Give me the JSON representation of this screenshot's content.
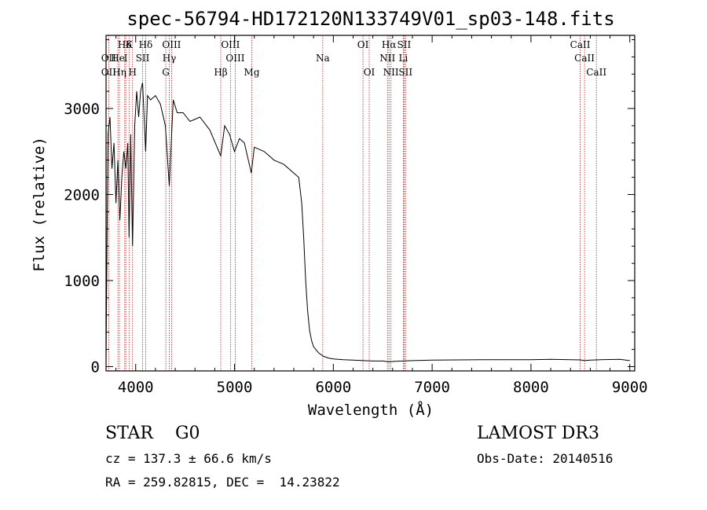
{
  "chart_data": {
    "type": "line",
    "title": "spec-56794-HD172120N133749V01_sp03-148.fits",
    "xlabel": "Wavelength (Å)",
    "ylabel": "Flux (relative)",
    "xlim": [
      3700,
      9050
    ],
    "ylim": [
      -50,
      3850
    ],
    "xticks": [
      4000,
      5000,
      6000,
      7000,
      8000,
      9000
    ],
    "yticks": [
      0,
      1000,
      2000,
      3000
    ],
    "series": [
      {
        "name": "flux",
        "x": [
          3700,
          3710,
          3720,
          3740,
          3760,
          3780,
          3800,
          3820,
          3840,
          3860,
          3880,
          3900,
          3920,
          3933,
          3950,
          3968,
          3990,
          4010,
          4030,
          4050,
          4070,
          4101,
          4120,
          4150,
          4200,
          4250,
          4300,
          4340,
          4380,
          4420,
          4480,
          4550,
          4650,
          4750,
          4861,
          4900,
          4950,
          5000,
          5050,
          5100,
          5170,
          5200,
          5300,
          5400,
          5500,
          5600,
          5650,
          5680,
          5700,
          5720,
          5740,
          5760,
          5780,
          5800,
          5850,
          5900,
          5950,
          6000,
          6100,
          6200,
          6300,
          6400,
          6500,
          6563,
          6600,
          6700,
          6800,
          7000,
          7500,
          8000,
          8200,
          8400,
          8500,
          8542,
          8600,
          8700,
          8900,
          9000
        ],
        "values": [
          80,
          1500,
          2700,
          2900,
          2300,
          2600,
          1900,
          2400,
          1700,
          2200,
          2500,
          2300,
          2600,
          1500,
          2700,
          1400,
          2800,
          3200,
          2900,
          3200,
          3300,
          2500,
          3150,
          3100,
          3150,
          3050,
          2800,
          2100,
          3100,
          2950,
          2950,
          2850,
          2900,
          2750,
          2450,
          2800,
          2700,
          2500,
          2650,
          2600,
          2250,
          2550,
          2500,
          2400,
          2350,
          2250,
          2200,
          1900,
          1500,
          1000,
          650,
          420,
          300,
          230,
          160,
          120,
          100,
          90,
          80,
          75,
          70,
          65,
          65,
          55,
          60,
          65,
          70,
          75,
          80,
          80,
          85,
          80,
          78,
          70,
          75,
          80,
          85,
          70
        ]
      }
    ],
    "line_markers": [
      {
        "label": "Hδ",
        "row": 0,
        "x": 3889
      },
      {
        "label": "K",
        "row": 0,
        "x": 3933
      },
      {
        "label": "Hδ",
        "row": 0,
        "x": 4101
      },
      {
        "label": "OIII",
        "row": 0,
        "x": 4363
      },
      {
        "label": "OIII",
        "row": 0,
        "x": 4959
      },
      {
        "label": "OI",
        "row": 0,
        "x": 6300
      },
      {
        "label": "Hα",
        "row": 0,
        "x": 6563
      },
      {
        "label": "SII",
        "row": 0,
        "x": 6716
      },
      {
        "label": "CaII",
        "row": 0,
        "x": 8498
      },
      {
        "label": "OII",
        "row": 1,
        "x": 3727
      },
      {
        "label": "He",
        "row": 1,
        "x": 3820
      },
      {
        "label": "I",
        "row": 1,
        "x": 3900
      },
      {
        "label": "SII",
        "row": 1,
        "x": 4070
      },
      {
        "label": "Hγ",
        "row": 1,
        "x": 4340
      },
      {
        "label": "OIII",
        "row": 1,
        "x": 5007
      },
      {
        "label": "Na",
        "row": 1,
        "x": 5893
      },
      {
        "label": "NII",
        "row": 1,
        "x": 6548
      },
      {
        "label": "Li",
        "row": 1,
        "x": 6708
      },
      {
        "label": "CaII",
        "row": 1,
        "x": 8542
      },
      {
        "label": "OII",
        "row": 2,
        "x": 3727
      },
      {
        "label": "Hη",
        "row": 2,
        "x": 3835
      },
      {
        "label": "H",
        "row": 2,
        "x": 3968
      },
      {
        "label": "G",
        "row": 2,
        "x": 4305
      },
      {
        "label": "Hβ",
        "row": 2,
        "x": 4861
      },
      {
        "label": "Mg",
        "row": 2,
        "x": 5175
      },
      {
        "label": "OI",
        "row": 2,
        "x": 6363
      },
      {
        "label": "NII",
        "row": 2,
        "x": 6583
      },
      {
        "label": "SII",
        "row": 2,
        "x": 6731
      },
      {
        "label": "CaII",
        "row": 2,
        "x": 8662
      }
    ],
    "marker_color": "#b22222"
  },
  "info": {
    "star_type": "STAR    G0",
    "survey": "LAMOST DR3",
    "cz": "cz = 137.3 ± 66.6 km/s",
    "obs_date": "Obs-Date: 20140516",
    "radec": "RA = 259.82815, DEC =  14.23822"
  }
}
